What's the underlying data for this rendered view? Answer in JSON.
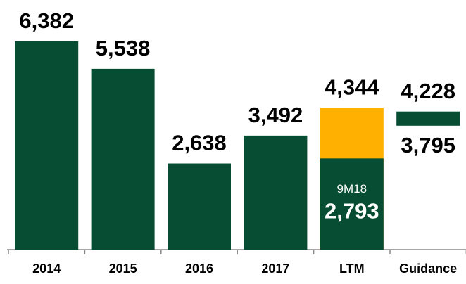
{
  "chart_data": {
    "type": "bar",
    "categories": [
      "2014",
      "2015",
      "2016",
      "2017",
      "LTM",
      "Guidance"
    ],
    "values": [
      6382,
      5538,
      2638,
      3492,
      4344,
      4228
    ],
    "value_labels": [
      "6,382",
      "5,538",
      "2,638",
      "3,492",
      "4,344",
      "4,228"
    ],
    "colors": [
      "#064d33",
      "#064d33",
      "#064d33",
      "#064d33",
      "#ffb000",
      "#064d33"
    ],
    "lows": [
      null,
      null,
      null,
      null,
      null,
      3795
    ],
    "low_labels": [
      null,
      null,
      null,
      null,
      null,
      "3,795"
    ],
    "overlay": {
      "category": "LTM",
      "label": "9M18",
      "value": 2793,
      "value_label": "2,793",
      "color": "#064d33"
    },
    "ylim": [
      0,
      7000
    ]
  }
}
